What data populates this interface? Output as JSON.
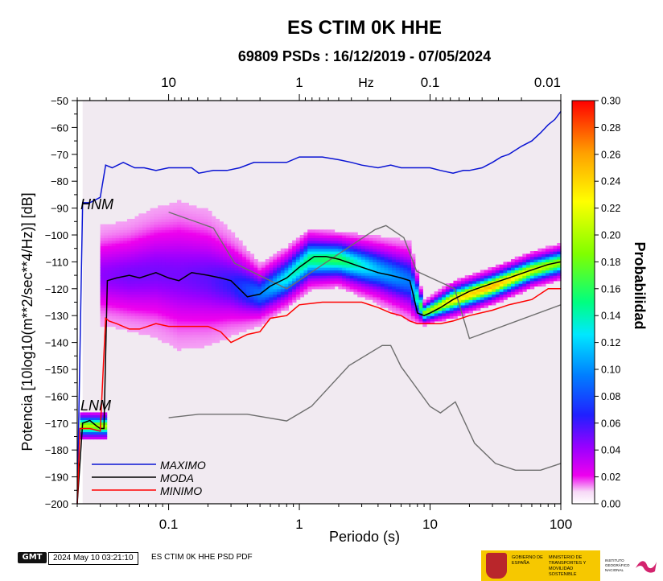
{
  "chart_data": {
    "type": "heatmap",
    "title": "ES CTIM 0K HHE",
    "subtitle": "69809 PSDs : 16/12/2019 - 07/05/2024",
    "xlabel": "Periodo (s)",
    "ylabel": "Potencia [10log10(m**2/sec**4/Hz)] [dB]",
    "x_scale": "log",
    "xlim": [
      0.02,
      100
    ],
    "ylim": [
      -200,
      -50
    ],
    "x_ticks": [
      0.1,
      1,
      10,
      100
    ],
    "x_tick_labels": [
      "0.1",
      "1",
      "10",
      "100"
    ],
    "top_axis_unit": "Hz",
    "top_ticks": [
      10,
      1,
      0.1,
      0.01
    ],
    "top_tick_labels": [
      "10",
      "1",
      "0.1",
      "0.01"
    ],
    "y_ticks": [
      -200,
      -190,
      -180,
      -170,
      -160,
      -150,
      -140,
      -130,
      -120,
      -110,
      -100,
      -90,
      -80,
      -70,
      -60,
      -50
    ],
    "y_tick_labels": [
      "−200",
      "−190",
      "−180",
      "−170",
      "−160",
      "−150",
      "−140",
      "−130",
      "−120",
      "−110",
      "−100",
      "−90",
      "−80",
      "−70",
      "−60",
      "−50"
    ],
    "colorbar": {
      "label": "Probabilidad",
      "range": [
        0,
        0.3
      ],
      "ticks": [
        0.0,
        0.02,
        0.04,
        0.06,
        0.08,
        0.1,
        0.12,
        0.14,
        0.16,
        0.18,
        0.2,
        0.22,
        0.24,
        0.26,
        0.28,
        0.3
      ],
      "tick_labels": [
        "0.00",
        "0.02",
        "0.04",
        "0.06",
        "0.08",
        "0.10",
        "0.12",
        "0.14",
        "0.16",
        "0.18",
        "0.20",
        "0.22",
        "0.24",
        "0.26",
        "0.28",
        "0.30"
      ]
    },
    "model_labels": {
      "high": "HNM",
      "low": "LNM"
    },
    "high_noise_model": {
      "x": [
        0.1,
        0.22,
        0.32,
        0.8,
        3.8,
        4.6,
        6.3,
        7.9,
        15.4,
        20,
        354.8
      ],
      "y": [
        -91.5,
        -97.4,
        -110.5,
        -120,
        -98,
        -96.5,
        -101,
        -113.5,
        -120,
        -138.5,
        -126
      ]
    },
    "low_noise_model": {
      "x": [
        0.1,
        0.17,
        0.4,
        0.8,
        1.24,
        2.4,
        4.3,
        5,
        6,
        10,
        12,
        15.6,
        21.9,
        31.6,
        45,
        70,
        101
      ],
      "y": [
        -168,
        -166.7,
        -166.7,
        -169.2,
        -163.7,
        -148.6,
        -141.1,
        -141.1,
        -149,
        -163.8,
        -166.2,
        -162.1,
        -177.5,
        -185,
        -187.5,
        -187.5,
        -185
      ]
    },
    "series": [
      {
        "name": "MAXIMO",
        "color": "#0a14d4",
        "x": [
          0.02,
          0.022,
          0.025,
          0.03,
          0.033,
          0.037,
          0.045,
          0.055,
          0.065,
          0.08,
          0.1,
          0.15,
          0.17,
          0.22,
          0.28,
          0.35,
          0.45,
          0.6,
          0.8,
          1.0,
          1.2,
          1.5,
          2.0,
          2.5,
          3.0,
          4.0,
          5.0,
          6.0,
          8.0,
          10,
          12,
          15,
          18,
          20,
          25,
          30,
          35,
          40,
          50,
          60,
          70,
          80,
          90,
          100
        ],
        "y": [
          -200,
          -88,
          -88,
          -86,
          -74,
          -75,
          -73,
          -75,
          -75,
          -76,
          -75,
          -75,
          -77,
          -76,
          -76,
          -75,
          -73,
          -73,
          -73,
          -71,
          -71,
          -71,
          -72,
          -73,
          -74,
          -75,
          -74,
          -75,
          -75,
          -75,
          -76,
          -77,
          -76,
          -76,
          -75,
          -73,
          -71,
          -70,
          -67,
          -65,
          -62,
          -59,
          -57,
          -54
        ]
      },
      {
        "name": "MODA",
        "color": "#000000",
        "x": [
          0.02,
          0.022,
          0.025,
          0.028,
          0.03,
          0.032,
          0.034,
          0.04,
          0.05,
          0.06,
          0.08,
          0.1,
          0.12,
          0.15,
          0.2,
          0.25,
          0.3,
          0.4,
          0.5,
          0.6,
          0.8,
          1.0,
          1.3,
          1.6,
          2.0,
          3.0,
          4.0,
          5.0,
          6.0,
          7.0,
          7.5,
          8.0,
          9.0,
          10,
          12,
          15,
          20,
          30,
          40,
          60,
          80,
          100
        ],
        "y": [
          -200,
          -170,
          -169,
          -171,
          -172,
          -172,
          -117,
          -116,
          -115,
          -116,
          -114,
          -116,
          -117,
          -114,
          -115,
          -116,
          -117,
          -123,
          -122,
          -119,
          -116,
          -112,
          -108,
          -108,
          -109,
          -112,
          -114,
          -115,
          -116,
          -117,
          -123,
          -129,
          -130,
          -129,
          -127,
          -124,
          -121,
          -118,
          -116,
          -113,
          -111,
          -110
        ]
      },
      {
        "name": "MINIMO",
        "color": "#ff0000",
        "x": [
          0.02,
          0.021,
          0.025,
          0.03,
          0.033,
          0.035,
          0.04,
          0.05,
          0.06,
          0.08,
          0.1,
          0.15,
          0.2,
          0.25,
          0.3,
          0.4,
          0.5,
          0.6,
          0.8,
          1.0,
          1.5,
          2.0,
          3.0,
          4.0,
          5.0,
          6.0,
          7.0,
          8.0,
          10,
          12,
          15,
          20,
          30,
          40,
          60,
          80,
          100
        ],
        "y": [
          -200,
          -172,
          -172,
          -173,
          -131,
          -132,
          -133,
          -135,
          -135,
          -133,
          -134,
          -134,
          -134,
          -136,
          -140,
          -137,
          -136,
          -131,
          -130,
          -126,
          -125,
          -125,
          -125,
          -127,
          -129,
          -130,
          -132,
          -133,
          -133,
          -133,
          -132,
          -130,
          -128,
          -126,
          -124,
          -120,
          -120
        ]
      }
    ],
    "density_bands": [
      {
        "x": [
          0.03,
          0.05,
          0.08,
          0.12,
          0.2,
          0.3,
          0.5,
          0.8,
          1.2,
          2.0,
          4.0,
          7.0,
          9.0,
          15,
          30,
          60,
          100
        ],
        "center": [
          -115,
          -115,
          -114,
          -115,
          -116,
          -118,
          -122,
          -116,
          -109,
          -109,
          -113,
          -117,
          -129,
          -124,
          -119,
          -113,
          -110
        ],
        "halfwidth": [
          16,
          18,
          21,
          24,
          22,
          17,
          10,
          10,
          10,
          9,
          11,
          13,
          4,
          6,
          6,
          6,
          6
        ],
        "peak": [
          0.03,
          0.035,
          0.035,
          0.035,
          0.04,
          0.05,
          0.08,
          0.12,
          0.14,
          0.15,
          0.1,
          0.08,
          0.18,
          0.22,
          0.24,
          0.2,
          0.18
        ]
      }
    ]
  },
  "footer": {
    "software_badge": "GMT",
    "timestamp": "2024 May 10 03:21:10",
    "file_label": "ES CTIM 0K HHE PSD PDF"
  },
  "logos": {
    "agency1": "GOBIERNO DE ESPAÑA",
    "agency2": "MINISTERIO DE TRANSPORTES Y MOVILIDAD SOSTENIBLE",
    "agency3": "INSTITUTO GEOGRÁFICO NACIONAL",
    "brand_color": "#f6c800"
  }
}
